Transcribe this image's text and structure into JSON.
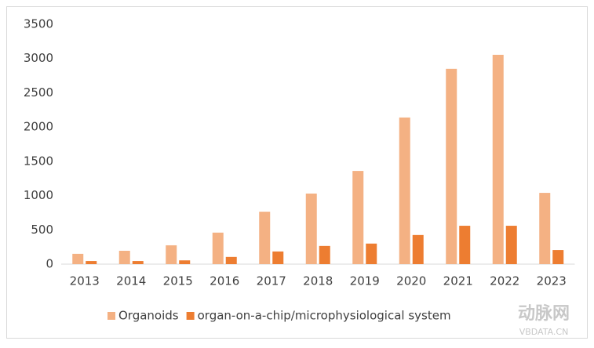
{
  "chart_data": {
    "type": "bar",
    "categories": [
      "2013",
      "2014",
      "2015",
      "2016",
      "2017",
      "2018",
      "2019",
      "2020",
      "2021",
      "2022",
      "2023"
    ],
    "series": [
      {
        "name": "Organoids",
        "color": "#f4b183",
        "values": [
          150,
          195,
          275,
          460,
          765,
          1030,
          1360,
          2140,
          2850,
          3055,
          1040
        ]
      },
      {
        "name": "organ-on-a-chip/microphysiological system",
        "color": "#ed7d31",
        "values": [
          45,
          45,
          55,
          105,
          185,
          265,
          300,
          425,
          560,
          560,
          205
        ]
      }
    ],
    "ylim": [
      0,
      3500
    ],
    "yticks": [
      0,
      500,
      1000,
      1500,
      2000,
      2500,
      3000,
      3500
    ],
    "grid": false,
    "legend": "bottom"
  },
  "watermark": {
    "logo": "动脉网",
    "site": "VBDATA.CN"
  }
}
